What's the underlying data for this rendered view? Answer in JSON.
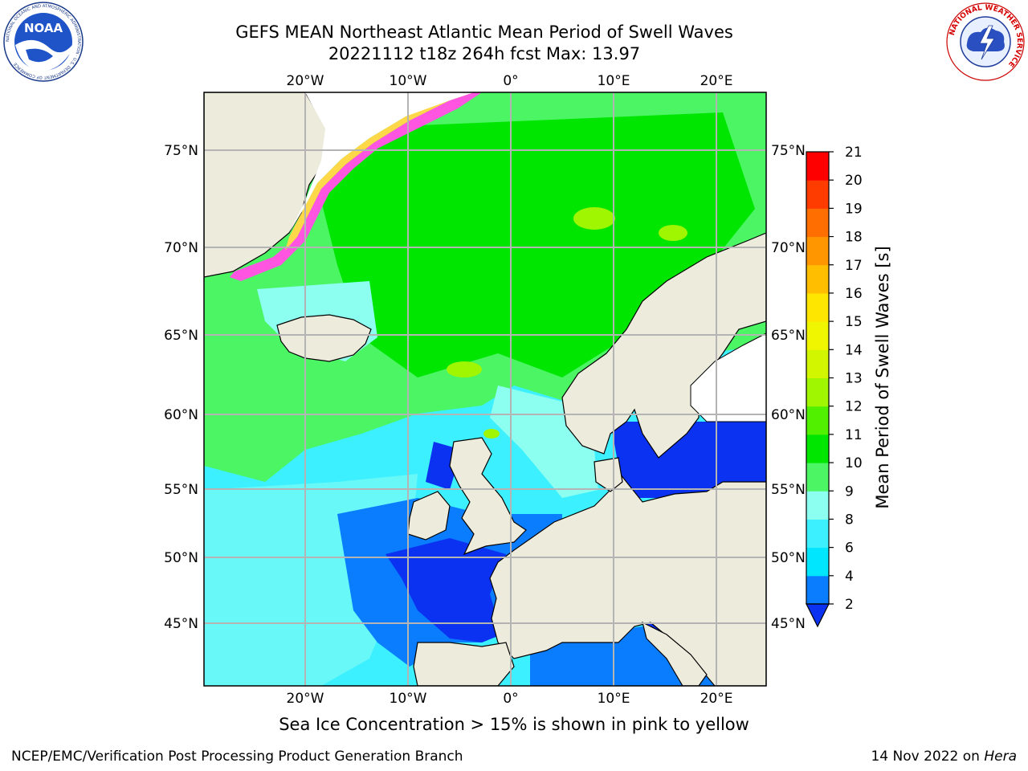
{
  "header": {
    "title_line1": "GEFS MEAN Northeast Atlantic Mean Period of Swell Waves",
    "title_line2": "20221112 t18z 264h fcst   Max: 13.97"
  },
  "logos": {
    "noaa_text": "NOAA",
    "noaa_ring_text": "NATIONAL OCEANIC AND ATMOSPHERIC ADMINISTRATION · U.S. DEPARTMENT OF COMMERCE",
    "nws_ring_text": "NATIONAL WEATHER SERVICE"
  },
  "map": {
    "lon_top_labels": [
      "20°W",
      "10°W",
      "0°",
      "10°E",
      "20°E"
    ],
    "lon_bottom_labels": [
      "20°W",
      "10°W",
      "0°",
      "10°E",
      "20°E"
    ],
    "lat_left_labels": [
      "75°N",
      "70°N",
      "65°N",
      "60°N",
      "55°N",
      "50°N",
      "45°N"
    ],
    "lat_right_labels": [
      "75°N",
      "70°N",
      "65°N",
      "60°N",
      "55°N",
      "50°N",
      "45°N"
    ],
    "land_color": "#ECEBDC",
    "grid_color": "#B4B4B4"
  },
  "colorbar": {
    "label": "Mean Period of Swell Waves [s]",
    "ticks": [
      "2",
      "4",
      "6",
      "8",
      "9",
      "10",
      "11",
      "12",
      "13",
      "14",
      "15",
      "16",
      "17",
      "18",
      "19",
      "20",
      "21"
    ],
    "colors": [
      "#0A32F0",
      "#0A7DFF",
      "#00E6FF",
      "#3CF0FF",
      "#8CFFF0",
      "#4BF564",
      "#00E600",
      "#50F000",
      "#A0F500",
      "#D2F500",
      "#F0F500",
      "#FFE600",
      "#FFBE00",
      "#FF9600",
      "#FF6E00",
      "#FF3C00",
      "#FF0000"
    ],
    "extend": "min"
  },
  "caption": "Sea Ice Concentration > 15% is shown in pink to yellow",
  "footer": {
    "left": "NCEP/EMC/Verification Post Processing Product Generation Branch",
    "right_prefix": "14 Nov 2022 on ",
    "right_italic": "Hera"
  }
}
